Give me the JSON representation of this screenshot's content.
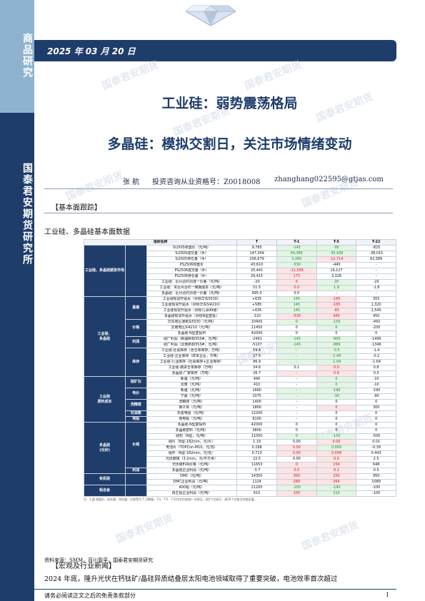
{
  "sidebar": {
    "top_label": "商品研究",
    "bottom_label": "国泰君安期货研究所"
  },
  "date": "2025 年 03 月 20 日",
  "title_main": "工业硅：弱势震荡格局",
  "title_sub": "多晶硅：模拟交割日，关注市场情绪变动",
  "author": {
    "name": "张 航",
    "cert": "投资咨询从业资格号：Z0018008",
    "email": "zhanghang022595@gtjas.com"
  },
  "section_basic": "【基本面跟踪】",
  "table_title": "工业硅、多晶硅基本面数据",
  "watermark": "国泰君安期货",
  "table": {
    "headers": [
      "指标名称",
      "T",
      "T-1",
      "T-5",
      "T-22"
    ],
    "rows": [
      [
        "Si2505收盘价（元/吨）",
        "9,785",
        "-145",
        "-95",
        "-825"
      ],
      [
        "Si2505成交量（手）",
        "147,349",
        "64,385",
        "-35,438",
        "-38,015"
      ],
      [
        "Si2505持仓量（手）",
        "256,679",
        "3,285",
        "-12,714",
        "62,589"
      ],
      [
        "PS2506收盘价",
        "43,610",
        "-530",
        "-440",
        "-"
      ],
      [
        "PS2506成交量（手）",
        "25,441",
        "-11,599",
        "19,127",
        "-"
      ],
      [
        "PS2506持仓量（手）",
        "29,415",
        "173",
        "3,328",
        "-"
      ],
      [
        "工业硅：近月合约对连一价差（元/吨）",
        "-20",
        "0",
        "20",
        "-20"
      ],
      [
        "工业硅：买近月合约一降期成本（元/吨）",
        "51.5",
        "0.0",
        "1.9",
        "-1.8"
      ],
      [
        "多晶硅：近月合约对连一价差（元/吨）",
        "695.0",
        "0.0",
        "-",
        "-"
      ],
      [
        "工业硅现货升贴水（对标华东5530）",
        "+635",
        "145",
        "-165",
        "355"
      ],
      [
        "工业硅现货升贴水（对标华东Si4210）",
        "+585",
        "145",
        "-165",
        "1,320"
      ],
      [
        "工业硅现货升贴水（对标几清99硅）",
        "+635",
        "145",
        "-65",
        "2,545"
      ],
      [
        "多晶硅现货升贴水（对标N型复投）",
        "-110",
        "-530",
        "440",
        "450"
      ],
      [
        "华东地区通氧Si5530（元/吨）",
        "10400",
        "0",
        "-150",
        "-450"
      ],
      [
        "云南地区Si4210（元/吨）",
        "11450",
        "0",
        "0",
        "-200"
      ],
      [
        "多晶硅-N型复投料",
        "42000",
        "0",
        "0",
        "0"
      ],
      [
        "硅厂利润（新疆新标553#，元/吨）",
        "-2491",
        "-145",
        "-905",
        "-1495"
      ],
      [
        "硅厂利润（云南新标553#，元/吨）",
        "-5107",
        "-145",
        "-889",
        "-1346"
      ],
      [
        "工业硅-社会库存（含仓单库存，万吨）",
        "59.4",
        "-",
        "-0.5",
        "-1.4"
      ],
      [
        "工业硅-企业库存（样本企业，万吨）",
        "27.5",
        "-",
        "-1.44",
        "-0.2"
      ],
      [
        "工业硅-行业库存（社会库存+企业库存）",
        "86.9",
        "-",
        "-1.94",
        "-1.64"
      ],
      [
        "工业硅-期货仓单库存（万吨）",
        "34.6",
        "0.1",
        "0.0",
        "0.8"
      ],
      [
        "多晶硅-厂家库存（万吨）",
        "26.7",
        "-",
        "0.6",
        "0.3"
      ],
      [
        "新疆（元/吨）",
        "440",
        "-",
        "0",
        "-10"
      ],
      [
        "云南（元/吨）",
        "410",
        "-",
        "0",
        "-10"
      ],
      [
        "新疆（元/吨）",
        "1660",
        "-",
        "-190",
        "-190"
      ],
      [
        "宁夏（元/吨）",
        "1075",
        "-",
        "-30",
        "-90"
      ],
      [
        "洗精煤（元/吨）",
        "1400",
        "-",
        "0",
        "0"
      ],
      [
        "锋子焦（元/吨）",
        "1860",
        "-",
        "0",
        "300"
      ],
      [
        "石墨电极（元/吨）",
        "12200",
        "-",
        "0",
        "0"
      ],
      [
        "炭电极（元/吨）",
        "8100",
        "-",
        "0",
        "0"
      ],
      [
        "多晶硅-N型复投料",
        "42000",
        "0",
        "0",
        "0"
      ],
      [
        "多晶致密料（元/吨）",
        "3800",
        "0",
        "0",
        "0"
      ],
      [
        "硅粉（N型，元/吨）",
        "11050",
        "0",
        "-150",
        "-500"
      ],
      [
        "硅片（N型-182mm，元/片）",
        "1.19",
        "0.00",
        "0.00",
        "0.01"
      ],
      [
        "电池片（TOPCon-M10，元/瓦）",
        "0.298",
        "0.00",
        "0.009",
        "-0.39"
      ],
      [
        "组件（N型-182mm，元/瓦）",
        "0.713",
        "0.00",
        "0.009",
        "0.443"
      ],
      [
        "光伏玻璃（3.2mm，元/平方米）",
        "22.5",
        "0.00",
        "0.0",
        "2.5"
      ],
      [
        "光伏级EVA价格（元/吨）",
        "11653",
        "0",
        "154",
        "648"
      ],
      [
        "多晶硅企业利润（元/吨）",
        "-3.7",
        "0.0",
        "0.2",
        "0.5"
      ],
      [
        "DMC（元/吨）",
        "14350",
        "300",
        "250",
        "950"
      ],
      [
        "DMC企业利润（元/吨）",
        "1124",
        "289",
        "264",
        "1089"
      ],
      [
        "A00铝（元/吨）",
        "21200",
        "-100",
        "-190",
        "-100"
      ],
      [
        "再生铝企业利润（元/吨）",
        "610",
        "100",
        "210",
        "-100"
      ]
    ],
    "note": "注：1.盘 收盘价、成交量、持仓量、价差等为 T 日数据，T-1、T-5、T-22分别为较前一交易日、前5个交易日、前22个交易日的变化值。"
  },
  "source": "资料来源：SMM，百川盈孚，国泰君安期货研究",
  "section_news": "【宏观及行业新闻】",
  "paragraph": "2024 年底，隆升光伏在钙钛矿/晶硅异质结叠层太阳电池领域取得了重要突破，电池效率首次超过",
  "footer": "请务必阅读正文之后的免责条款部分",
  "page_number": "1"
}
